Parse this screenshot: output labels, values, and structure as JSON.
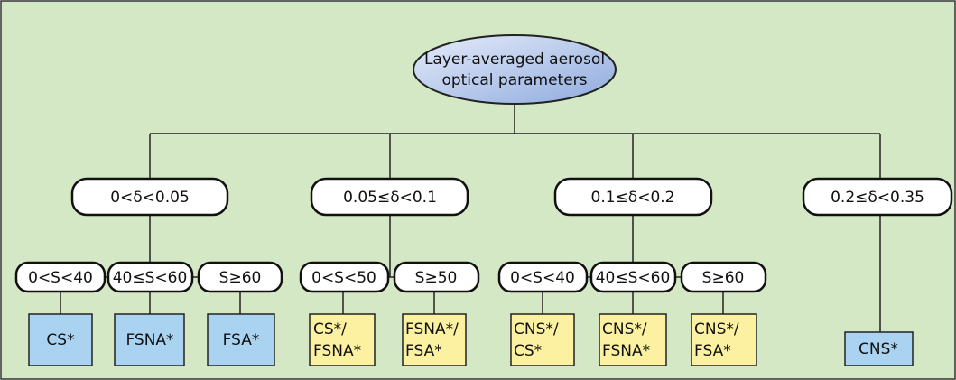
{
  "root": {
    "lines": [
      "Layer-averaged aerosol",
      "optical parameters"
    ]
  },
  "branches": [
    {
      "label": "0<δ<0.05",
      "splits": [
        {
          "label": "0<S<40",
          "result": [
            "CS*"
          ]
        },
        {
          "label": "40≤S<60",
          "result": [
            "FSNA*"
          ]
        },
        {
          "label": "S≥60",
          "result": [
            "FSA*"
          ]
        }
      ]
    },
    {
      "label": "0.05≤δ<0.1",
      "splits": [
        {
          "label": "0<S<50",
          "result": [
            "CS*/",
            "FSNA*"
          ]
        },
        {
          "label": "S≥50",
          "result": [
            "FSNA*/",
            "FSA*"
          ]
        }
      ]
    },
    {
      "label": "0.1≤δ<0.2",
      "splits": [
        {
          "label": "0<S<40",
          "result": [
            "CNS*/",
            "CS*"
          ]
        },
        {
          "label": "40≤S<60",
          "result": [
            "CNS*/",
            "FSNA*"
          ]
        },
        {
          "label": "S≥60",
          "result": [
            "CNS*/",
            "FSA*"
          ]
        }
      ]
    },
    {
      "label": "0.2≤δ<0.35",
      "result": [
        "CNS*"
      ]
    }
  ]
}
